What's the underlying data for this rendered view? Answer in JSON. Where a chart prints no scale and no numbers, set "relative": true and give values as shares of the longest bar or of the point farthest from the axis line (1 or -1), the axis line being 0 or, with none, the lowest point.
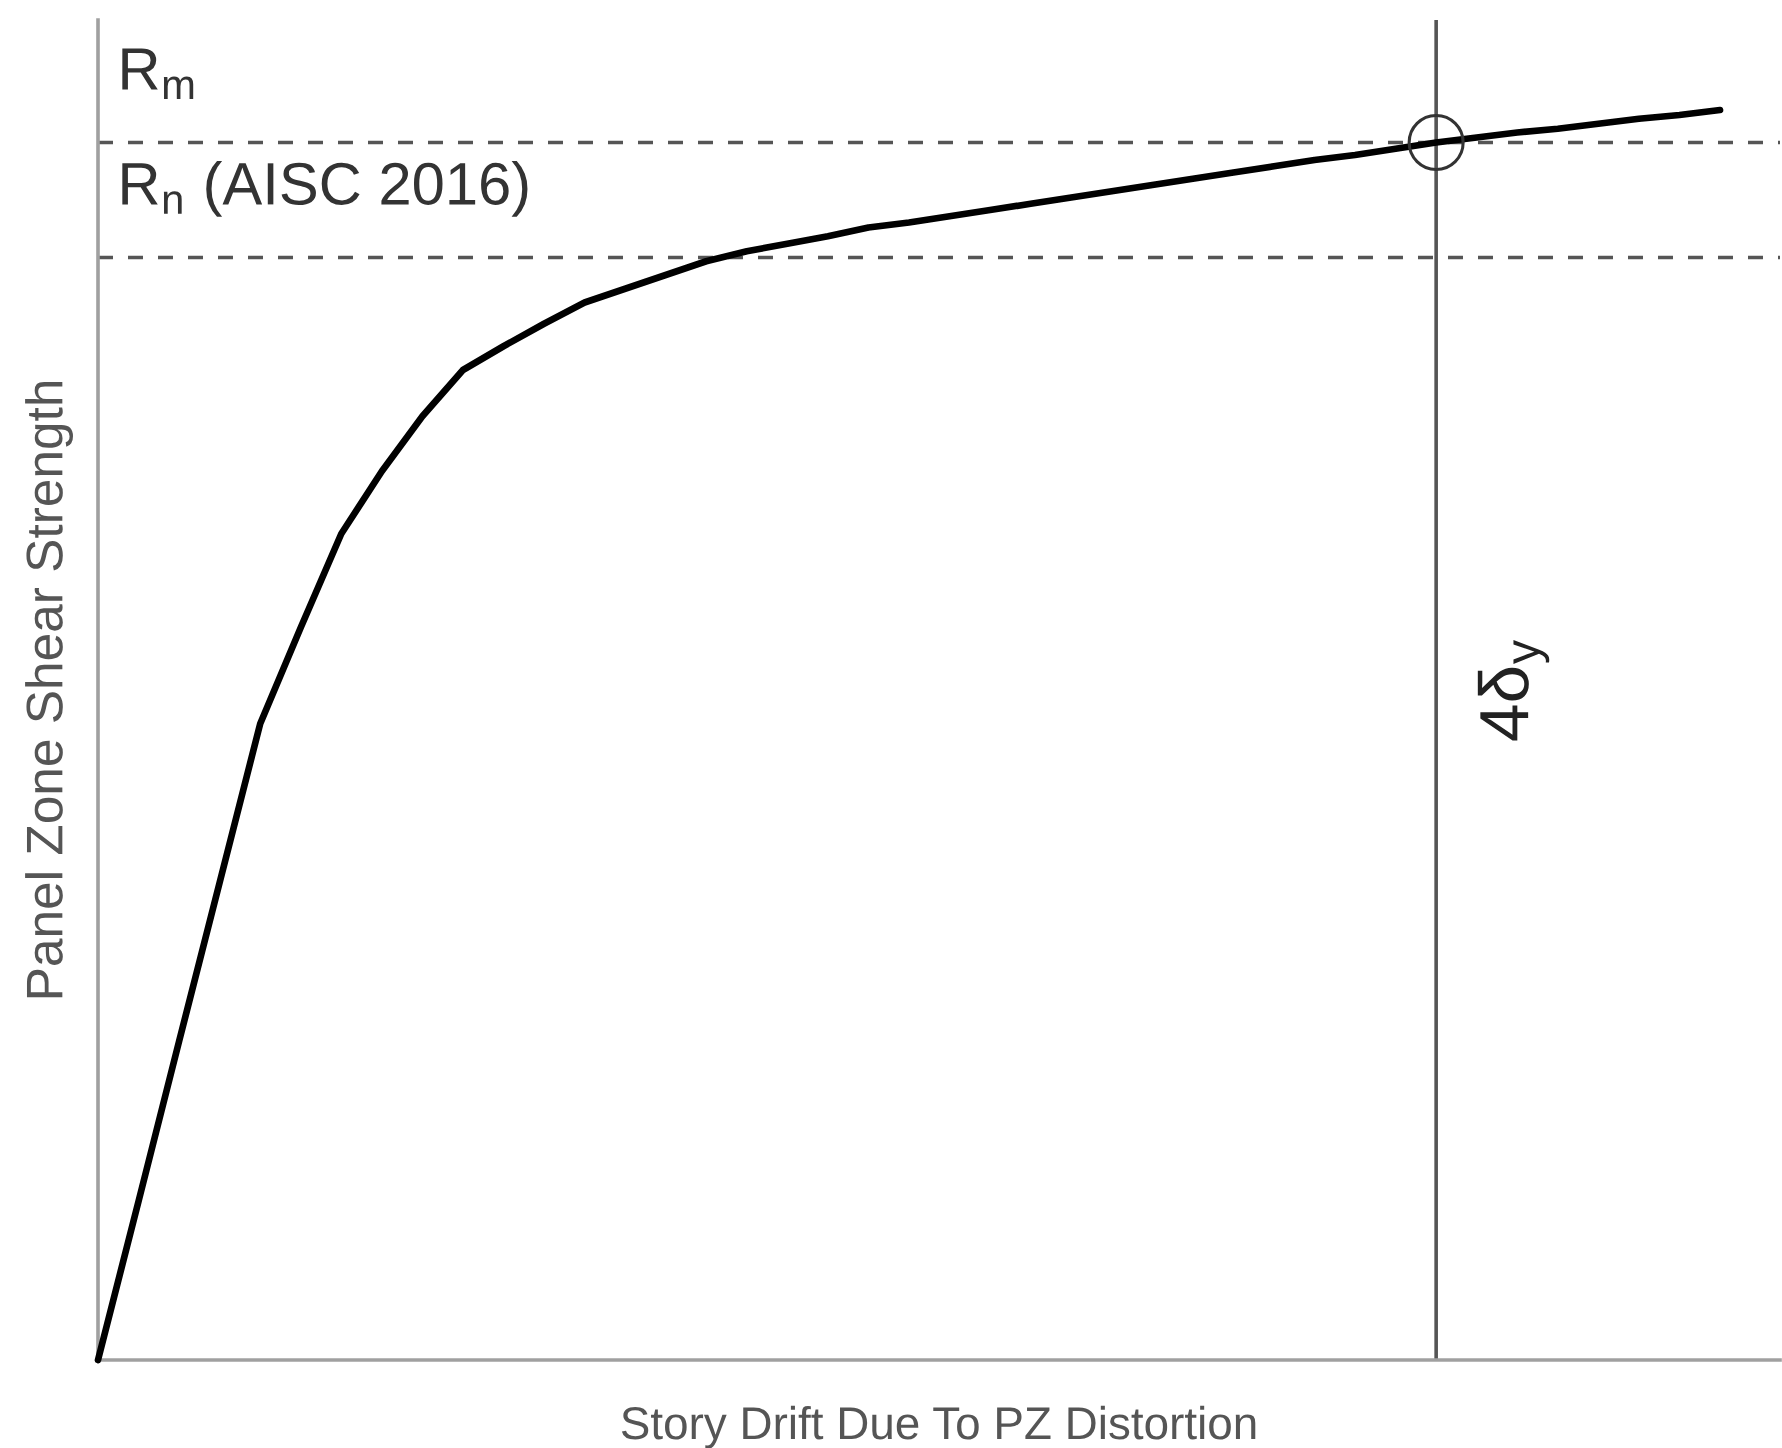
{
  "chart_data": {
    "type": "line",
    "relative": true,
    "xlabel": "Story Drift Due To PZ Distortion",
    "ylabel": "Panel Zone Shear Strength",
    "categories": [
      null,
      null,
      null,
      null,
      null,
      null,
      null,
      null,
      null,
      null,
      null,
      null,
      null,
      null,
      null,
      null,
      null,
      null,
      null,
      null,
      null,
      null,
      null,
      null,
      null,
      null,
      null,
      null,
      null,
      null,
      null,
      null,
      null,
      null,
      null,
      null,
      null,
      null,
      null,
      null,
      null
    ],
    "series": [
      {
        "color": "#000000",
        "values": [
          0,
          0.127,
          0.255,
          0.382,
          0.509,
          0.586,
          0.661,
          0.711,
          0.755,
          0.792,
          0.811,
          0.829,
          0.846,
          0.857,
          0.868,
          0.879,
          0.887,
          0.893,
          0.899,
          0.906,
          0.91,
          0.915,
          0.92,
          0.925,
          0.93,
          0.935,
          0.94,
          0.945,
          0.95,
          0.955,
          0.96,
          0.964,
          0.969,
          0.974,
          0.978,
          0.982,
          0.985,
          0.989,
          0.993,
          0.996,
          1
        ]
      }
    ],
    "ref_lines": [
      {
        "axis": "y",
        "value": 0.974,
        "label": "R$_{m}$",
        "line_style": "dashed",
        "color": "#555555"
      },
      {
        "axis": "y",
        "value": 0.882,
        "label": "R$_{n}$ (AISC 2016)",
        "line_style": "dashed",
        "color": "#555555"
      }
    ],
    "annotations": [
      "4δ$_{y}$"
    ]
  }
}
